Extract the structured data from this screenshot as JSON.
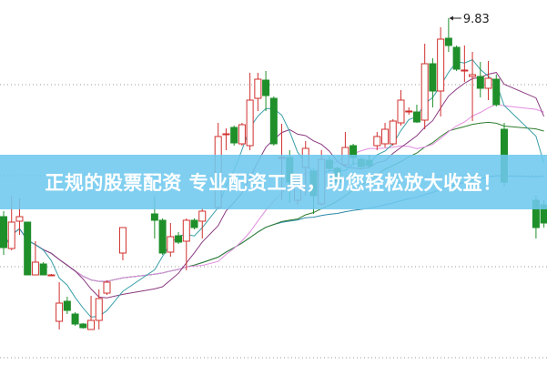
{
  "banner": {
    "text": "正规的股票配资 专业配资工具，助您轻松放大收益！"
  },
  "chart_data": {
    "type": "candlestick",
    "title": "",
    "ylim": [
      6.02,
      10.03
    ],
    "grid": "horizontal-dotted",
    "gridlines": [
      9.1,
      8.1,
      7.1,
      6.1
    ],
    "colors": {
      "up": "#d0302e",
      "down": "#1f8f2a",
      "ma5": "#3a9fa8",
      "ma10": "#8a3a80",
      "ma20": "#e28ce0",
      "ma30": "#2f7d2f",
      "ma60": "#2b88a8",
      "grid": "#999999"
    },
    "max_label": "9.83",
    "candles": [
      [
        7.65,
        7.71,
        7.23,
        7.31
      ],
      [
        7.3,
        7.88,
        7.28,
        7.59
      ],
      [
        7.6,
        7.85,
        7.45,
        7.65
      ],
      [
        7.59,
        7.59,
        7.01,
        7.01
      ],
      [
        7.01,
        7.38,
        7.01,
        7.15
      ],
      [
        7.13,
        7.15,
        7.01,
        7.01
      ],
      [
        7.01,
        7.02,
        7.0,
        7.01
      ],
      [
        6.5,
        6.93,
        6.41,
        6.7
      ],
      [
        6.72,
        6.77,
        6.58,
        6.62
      ],
      [
        6.58,
        6.6,
        6.45,
        6.47
      ],
      [
        6.47,
        6.48,
        6.42,
        6.43
      ],
      [
        6.41,
        6.78,
        6.41,
        6.51
      ],
      [
        6.51,
        6.85,
        6.41,
        6.75
      ],
      [
        6.81,
        6.95,
        6.79,
        6.93
      ],
      null,
      [
        7.25,
        7.53,
        7.17,
        7.53
      ],
      null,
      null,
      null,
      [
        7.68,
        7.87,
        7.41,
        7.61
      ],
      [
        7.61,
        7.63,
        7.23,
        7.25
      ],
      [
        7.26,
        7.58,
        7.21,
        7.43
      ],
      [
        7.44,
        7.48,
        7.35,
        7.37
      ],
      [
        7.38,
        7.63,
        7.06,
        7.61
      ],
      [
        7.61,
        7.63,
        7.51,
        7.53
      ],
      [
        7.6,
        7.75,
        7.41,
        7.71
      ],
      null,
      [
        7.75,
        8.68,
        7.73,
        8.53
      ],
      [
        8.56,
        8.62,
        8.38,
        8.56
      ],
      [
        8.63,
        8.65,
        8.43,
        8.46
      ],
      [
        8.45,
        8.68,
        8.43,
        8.66
      ],
      [
        8.43,
        9.23,
        8.38,
        8.93
      ],
      [
        8.95,
        9.23,
        8.81,
        9.16
      ],
      [
        9.15,
        9.25,
        8.81,
        8.98
      ],
      [
        8.95,
        8.97,
        8.43,
        8.45
      ],
      [
        8.3,
        8.67,
        7.83,
        8.3
      ],
      [
        8.3,
        8.38,
        7.8,
        8.03
      ],
      [
        7.83,
        8.08,
        7.78,
        8.03
      ],
      [
        8.19,
        8.48,
        7.88,
        8.4
      ],
      [
        8.15,
        8.18,
        7.68,
        7.88
      ],
      [
        7.79,
        8.38,
        7.77,
        8.28
      ],
      [
        8.27,
        8.31,
        8.15,
        8.18
      ],
      [
        8.18,
        8.2,
        8.01,
        8.03
      ],
      [
        8.22,
        8.58,
        8.2,
        8.41
      ],
      [
        8.43,
        8.45,
        8.21,
        8.3
      ],
      [
        8.28,
        8.3,
        8.17,
        8.2
      ],
      [
        8.27,
        8.33,
        8.18,
        8.21
      ],
      [
        8.43,
        8.58,
        8.38,
        8.53
      ],
      [
        8.45,
        8.68,
        8.41,
        8.61
      ],
      [
        8.45,
        8.72,
        8.43,
        8.7
      ],
      [
        8.68,
        9.04,
        8.65,
        8.93
      ],
      [
        8.81,
        8.85,
        8.77,
        8.81
      ],
      [
        8.8,
        8.88,
        8.68,
        8.69
      ],
      [
        8.71,
        9.55,
        8.61,
        9.33
      ],
      [
        9.33,
        9.39,
        8.85,
        9.03
      ],
      [
        9.03,
        9.73,
        8.75,
        9.6
      ],
      [
        9.61,
        9.83,
        9.46,
        9.53
      ],
      [
        9.51,
        9.53,
        9.25,
        9.27
      ],
      [
        9.26,
        9.53,
        9.13,
        9.26
      ],
      [
        9.19,
        9.46,
        8.7,
        9.21
      ],
      [
        9.19,
        9.35,
        8.96,
        9.06
      ],
      [
        9.06,
        9.36,
        8.93,
        9.17
      ],
      [
        9.16,
        9.21,
        8.86,
        8.88
      ],
      [
        8.61,
        8.68,
        7.98,
        8.03
      ],
      null,
      null,
      null,
      [
        7.83,
        7.88,
        7.41,
        7.53
      ],
      [
        7.78,
        7.83,
        7.53,
        7.58
      ]
    ],
    "candle_format": [
      "open",
      "high",
      "low",
      "close"
    ]
  }
}
